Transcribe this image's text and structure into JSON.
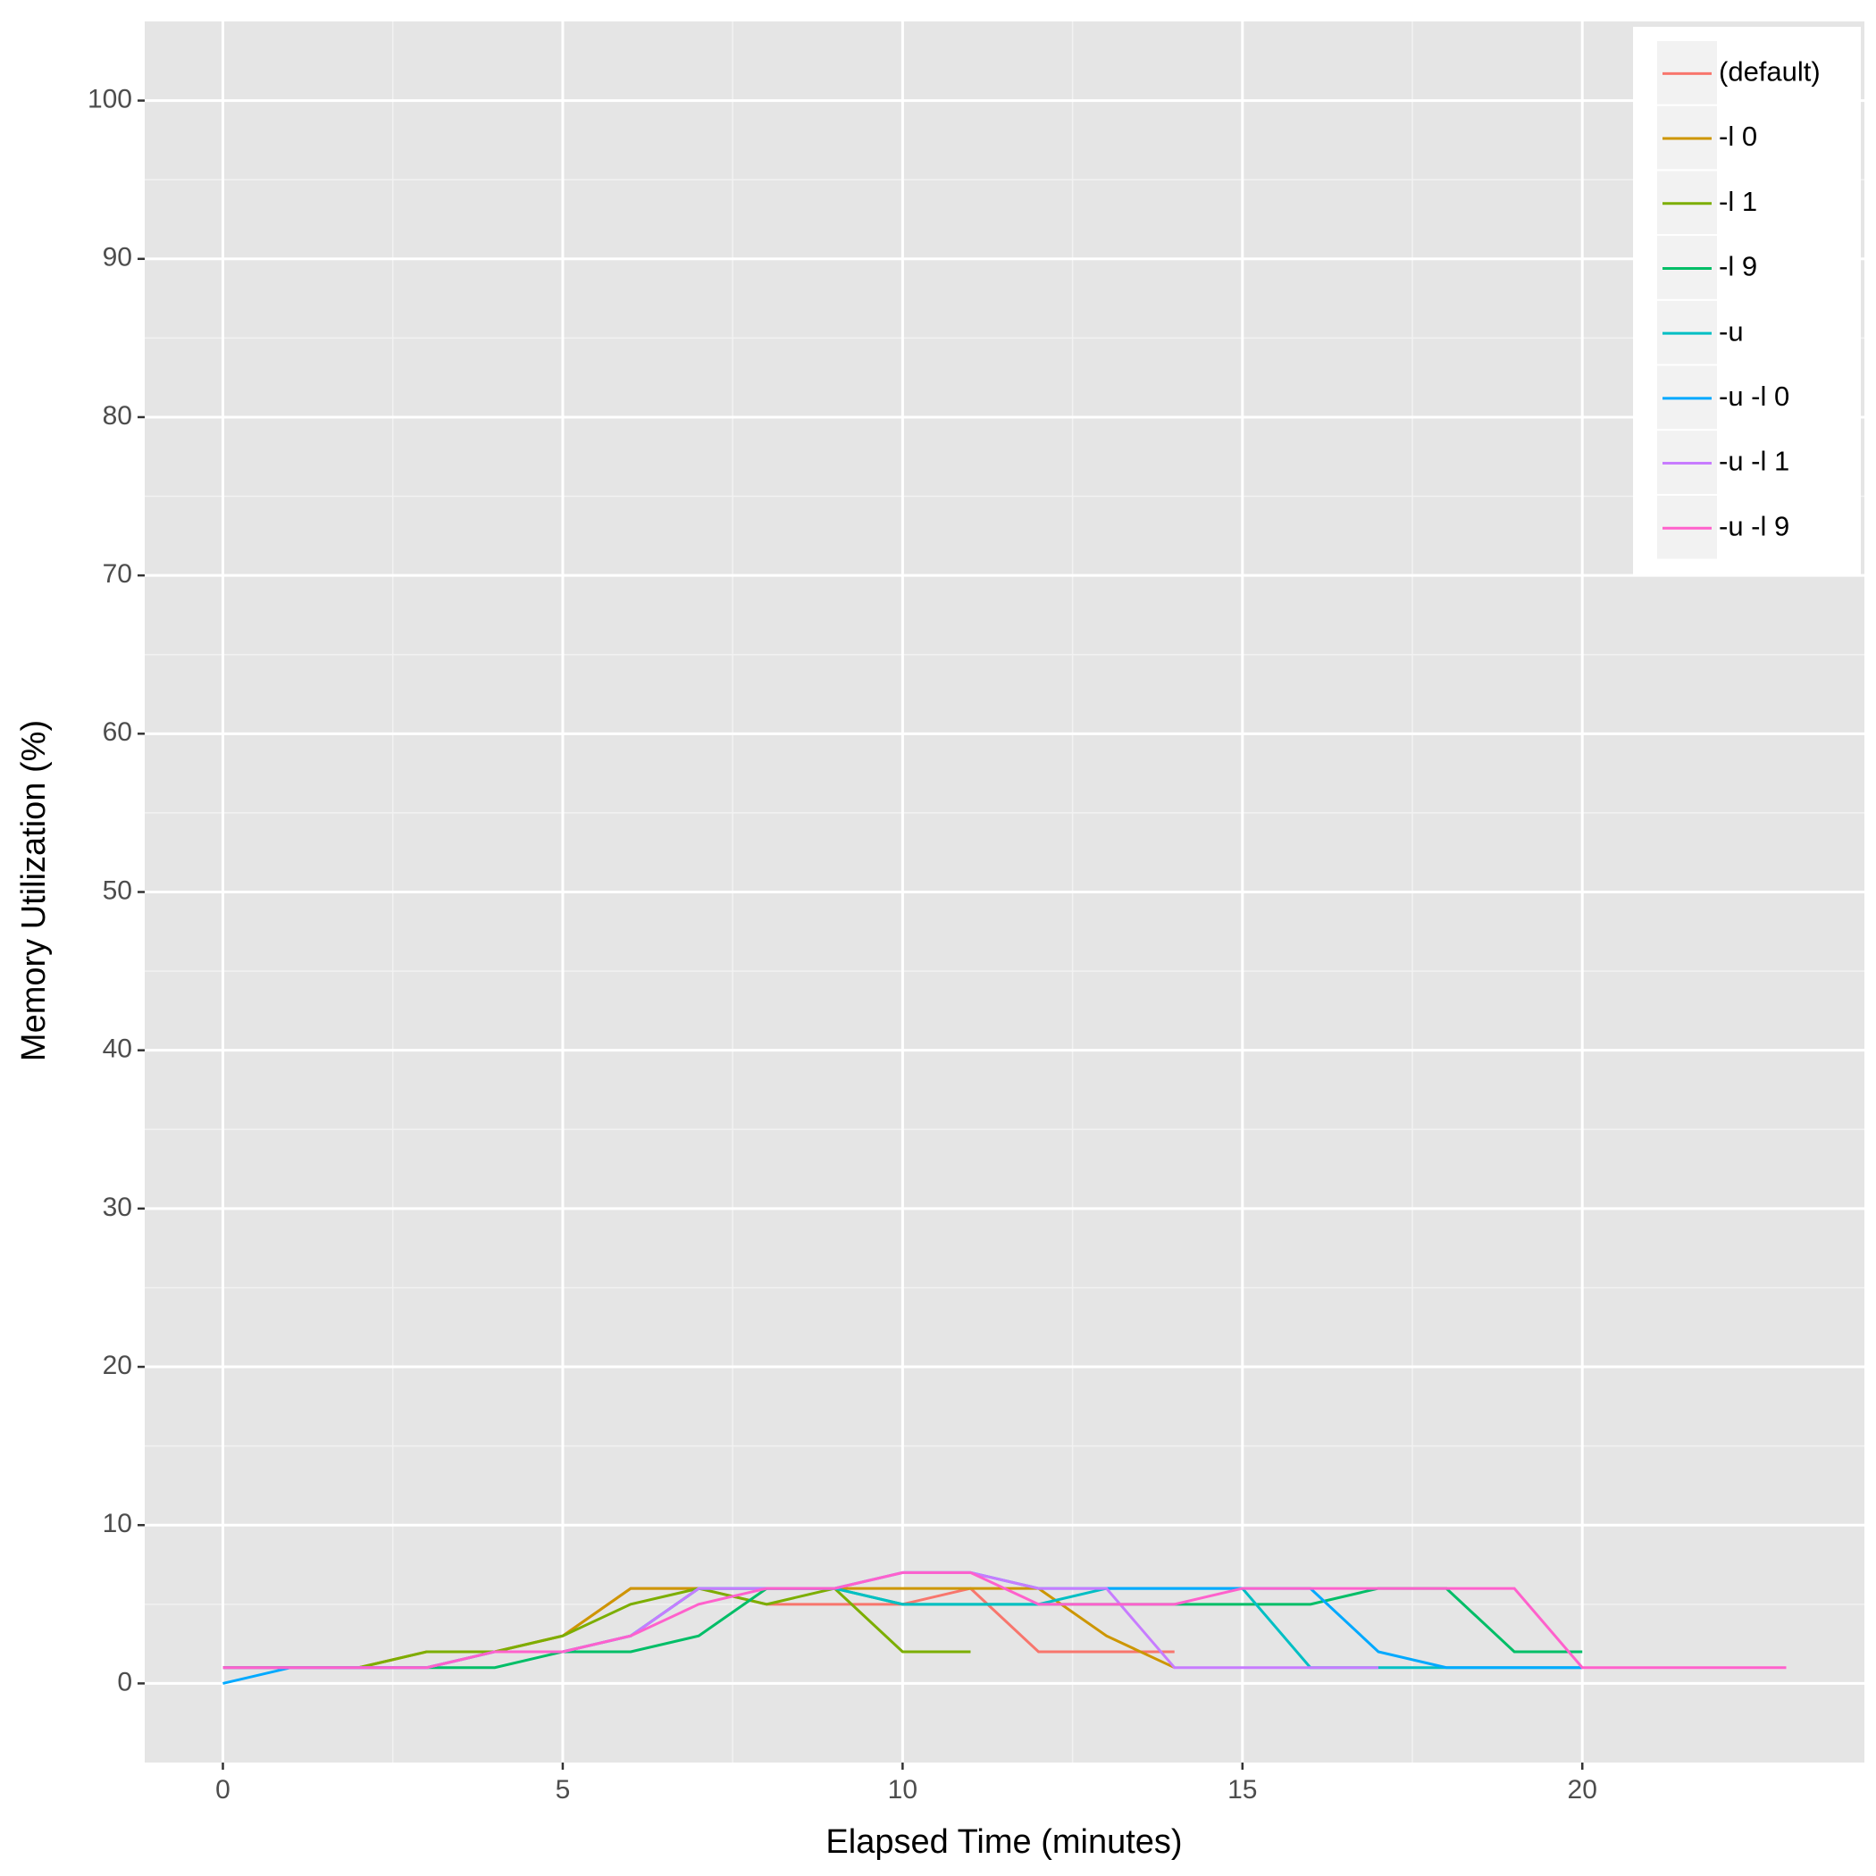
{
  "chart_data": {
    "type": "line",
    "x_label": "Elapsed Time (minutes)",
    "y_label": "Memory Utilization (%)",
    "x": [
      0,
      1,
      2,
      3,
      4,
      5,
      6,
      7,
      8,
      9,
      10,
      11,
      12,
      13,
      14,
      15,
      16,
      17,
      18,
      19,
      20,
      21,
      22,
      23
    ],
    "xlim": [
      -1.15,
      24.15
    ],
    "xticks": [
      0,
      5,
      10,
      15,
      20
    ],
    "ylim": [
      -5,
      105
    ],
    "yticks": [
      0,
      10,
      20,
      30,
      40,
      50,
      60,
      70,
      80,
      90,
      100
    ],
    "grid": true,
    "legend": "top-right",
    "series": [
      {
        "name": "(default)",
        "color": "#F8766D",
        "values": [
          1,
          1,
          1,
          2,
          2,
          3,
          6,
          6,
          5,
          5,
          5,
          6,
          2,
          2,
          2,
          null,
          null,
          null,
          null,
          null,
          null,
          null,
          null,
          null
        ]
      },
      {
        "name": "-l 0",
        "color": "#CD9600",
        "values": [
          1,
          1,
          1,
          2,
          2,
          3,
          6,
          6,
          6,
          6,
          6,
          6,
          6,
          3,
          1,
          null,
          null,
          null,
          null,
          null,
          null,
          null,
          null,
          null
        ]
      },
      {
        "name": "-l 1",
        "color": "#7CAE00",
        "values": [
          1,
          1,
          1,
          2,
          2,
          3,
          5,
          6,
          5,
          6,
          2,
          2,
          null,
          null,
          null,
          null,
          null,
          null,
          null,
          null,
          null,
          null,
          null,
          null
        ]
      },
      {
        "name": "-l 9",
        "color": "#00BE67",
        "values": [
          1,
          1,
          1,
          1,
          1,
          2,
          2,
          3,
          6,
          6,
          5,
          5,
          5,
          5,
          5,
          5,
          5,
          6,
          6,
          2,
          2,
          null,
          null,
          null
        ]
      },
      {
        "name": "-u",
        "color": "#00BFC4",
        "values": [
          1,
          1,
          1,
          1,
          2,
          2,
          3,
          6,
          6,
          6,
          5,
          5,
          5,
          6,
          6,
          6,
          1,
          1,
          1,
          1,
          1,
          null,
          null,
          null
        ]
      },
      {
        "name": "-u -l 0",
        "color": "#00A9FF",
        "values": [
          0,
          1,
          1,
          1,
          2,
          2,
          3,
          6,
          6,
          6,
          7,
          7,
          6,
          6,
          6,
          6,
          6,
          2,
          1,
          1,
          1,
          null,
          null,
          null
        ]
      },
      {
        "name": "-u -l 1",
        "color": "#C77CFF",
        "values": [
          1,
          1,
          1,
          1,
          2,
          2,
          3,
          6,
          6,
          6,
          7,
          7,
          6,
          6,
          1,
          1,
          1,
          1,
          null,
          null,
          null,
          null,
          null,
          null
        ]
      },
      {
        "name": "-u -l 9",
        "color": "#FF61CC",
        "values": [
          1,
          1,
          1,
          1,
          2,
          2,
          3,
          5,
          6,
          6,
          7,
          7,
          5,
          5,
          5,
          6,
          6,
          6,
          6,
          6,
          1,
          1,
          1,
          1
        ]
      }
    ]
  }
}
